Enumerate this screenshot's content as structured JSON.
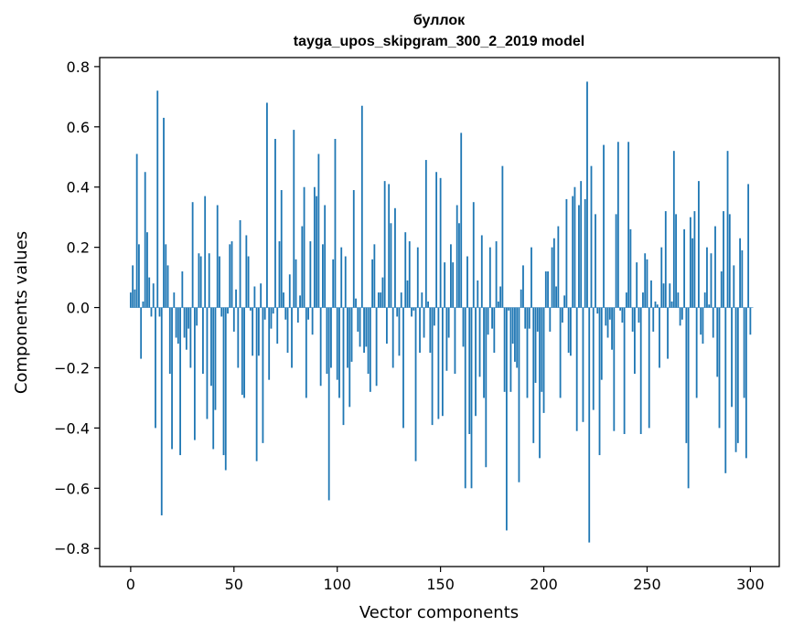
{
  "chart_data": {
    "type": "bar",
    "title_line1": "буллок",
    "title_line2": "tayga_upos_skipgram_300_2_2019 model",
    "xlabel": "Vector components",
    "ylabel": "Components values",
    "xlim": [
      -15,
      314
    ],
    "ylim": [
      -0.86,
      0.83
    ],
    "xticks": [
      0,
      50,
      100,
      150,
      200,
      250,
      300
    ],
    "xtick_labels": [
      "0",
      "50",
      "100",
      "150",
      "200",
      "250",
      "300"
    ],
    "yticks": [
      0.8,
      0.6,
      0.4,
      0.2,
      0.0,
      -0.2,
      -0.4,
      -0.6,
      -0.8
    ],
    "ytick_labels": [
      "0.8",
      "0.6",
      "0.4",
      "0.2",
      "0.0",
      "−0.2",
      "−0.4",
      "−0.6",
      "−0.8"
    ],
    "bar_color": "#1f77b4",
    "grid": false,
    "values": [
      0.05,
      0.14,
      0.06,
      0.51,
      0.21,
      -0.17,
      0.02,
      0.45,
      0.25,
      0.1,
      -0.03,
      0.08,
      -0.4,
      0.72,
      -0.03,
      -0.69,
      0.63,
      0.21,
      0.14,
      -0.22,
      -0.47,
      0.05,
      -0.1,
      -0.12,
      -0.49,
      0.12,
      -0.1,
      -0.14,
      -0.07,
      -0.2,
      0.35,
      -0.44,
      -0.06,
      0.18,
      0.17,
      -0.22,
      0.37,
      -0.37,
      0.18,
      -0.26,
      -0.47,
      -0.34,
      0.34,
      0.17,
      -0.03,
      -0.49,
      -0.54,
      -0.02,
      0.21,
      0.22,
      -0.08,
      0.06,
      -0.2,
      0.29,
      -0.29,
      -0.3,
      0.24,
      0.17,
      -0.01,
      -0.16,
      0.07,
      -0.51,
      -0.16,
      0.08,
      -0.45,
      -0.04,
      0.68,
      -0.24,
      -0.07,
      -0.02,
      0.56,
      -0.12,
      0.22,
      0.39,
      0.05,
      -0.04,
      -0.15,
      0.11,
      -0.2,
      0.59,
      0.16,
      -0.05,
      0.04,
      0.27,
      0.4,
      -0.3,
      -0.04,
      0.22,
      -0.09,
      0.4,
      0.37,
      0.51,
      -0.26,
      0.21,
      0.34,
      -0.22,
      -0.64,
      -0.2,
      0.16,
      0.56,
      -0.24,
      -0.3,
      0.2,
      -0.39,
      0.17,
      -0.2,
      -0.33,
      -0.18,
      0.39,
      0.03,
      -0.08,
      -0.13,
      0.67,
      -0.15,
      -0.13,
      -0.22,
      -0.28,
      0.16,
      0.21,
      -0.26,
      0.05,
      0.05,
      0.1,
      0.42,
      -0.12,
      0.41,
      0.28,
      -0.2,
      0.33,
      -0.03,
      -0.16,
      0.05,
      -0.4,
      0.25,
      0.09,
      0.22,
      -0.03,
      -0.01,
      -0.51,
      0.2,
      -0.15,
      0.05,
      -0.1,
      0.49,
      0.02,
      -0.15,
      -0.39,
      -0.06,
      0.45,
      -0.37,
      0.43,
      -0.36,
      0.15,
      -0.21,
      -0.1,
      0.21,
      0.15,
      -0.22,
      0.34,
      0.28,
      0.58,
      -0.13,
      -0.6,
      0.17,
      -0.42,
      -0.6,
      0.35,
      -0.36,
      0.09,
      -0.23,
      0.24,
      -0.3,
      -0.53,
      -0.09,
      0.2,
      -0.07,
      -0.15,
      0.22,
      0.02,
      0.07,
      0.47,
      -0.28,
      -0.74,
      -0.01,
      -0.28,
      -0.12,
      -0.18,
      -0.2,
      -0.58,
      0.06,
      0.14,
      -0.07,
      -0.3,
      -0.07,
      0.2,
      -0.45,
      -0.25,
      -0.08,
      -0.5,
      -0.28,
      -0.35,
      0.12,
      0.12,
      -0.08,
      0.2,
      0.23,
      0.07,
      0.27,
      -0.3,
      -0.05,
      0.04,
      0.36,
      -0.15,
      -0.16,
      0.37,
      0.4,
      -0.41,
      0.34,
      0.42,
      -0.38,
      0.36,
      0.75,
      -0.78,
      0.47,
      -0.34,
      0.31,
      -0.02,
      -0.49,
      -0.24,
      0.54,
      -0.06,
      -0.1,
      -0.04,
      -0.14,
      -0.41,
      0.31,
      0.55,
      -0.01,
      -0.05,
      -0.42,
      0.05,
      0.55,
      0.26,
      -0.08,
      -0.22,
      0.15,
      -0.05,
      -0.42,
      0.05,
      0.18,
      0.16,
      -0.4,
      0.09,
      -0.08,
      0.02,
      0.01,
      -0.2,
      0.2,
      0.08,
      0.32,
      -0.17,
      0.08,
      0.02,
      0.52,
      0.31,
      0.05,
      -0.06,
      -0.04,
      0.26,
      -0.45,
      -0.6,
      0.3,
      0.23,
      0.32,
      -0.3,
      0.42,
      -0.09,
      -0.12,
      0.05,
      0.2,
      0.01,
      0.18,
      -0.1,
      0.27,
      -0.23,
      -0.4,
      0.12,
      0.32,
      -0.55,
      0.52,
      0.31,
      -0.33,
      0.14,
      -0.48,
      -0.45,
      0.23,
      0.19,
      -0.3,
      -0.5,
      0.41,
      -0.09,
      0.0
    ]
  }
}
